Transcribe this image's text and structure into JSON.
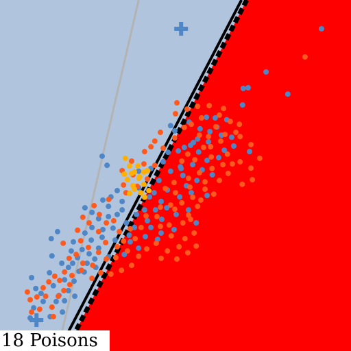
{
  "caption": "18 Poisons",
  "colors": {
    "region_left": "#b0c4de",
    "region_right": "#ff0000",
    "class_a": "#4f86c6",
    "class_b": "#ff5a1e",
    "poison": "#ffb000",
    "gray_boundary": "#b3b3b3",
    "boundary_solid": "#000000",
    "boundary_dashed": "#000000"
  },
  "chart_data": {
    "type": "scatter",
    "title": "",
    "xlabel": "",
    "ylabel": "",
    "grid": false,
    "legend": "none",
    "xlim": [
      0,
      1
    ],
    "ylim": [
      0,
      1
    ],
    "boundaries": [
      {
        "name": "",
        "style": "solid-gray",
        "x1": 0.395,
        "y1": 1.0,
        "x2": 0.164,
        "y2": 0.0
      },
      {
        "name": "",
        "style": "solid-black",
        "x1": 0.688,
        "y1": 1.0,
        "x2": 0.195,
        "y2": 0.055
      },
      {
        "name": "",
        "style": "dashed-black",
        "x1": 0.703,
        "y1": 1.0,
        "x2": 0.215,
        "y2": 0.055
      }
    ],
    "centers": [
      {
        "class": "a",
        "x": 0.516,
        "y": 0.918
      },
      {
        "class": "a",
        "x": 0.104,
        "y": 0.088
      }
    ],
    "series": [
      {
        "class": "a",
        "points": [
          [
            0.916,
            0.918
          ],
          [
            0.758,
            0.795
          ],
          [
            0.82,
            0.732
          ],
          [
            0.707,
            0.75
          ],
          [
            0.691,
            0.701
          ],
          [
            0.693,
            0.748
          ],
          [
            0.588,
            0.666
          ],
          [
            0.646,
            0.659
          ],
          [
            0.618,
            0.638
          ],
          [
            0.631,
            0.615
          ],
          [
            0.66,
            0.609
          ],
          [
            0.594,
            0.596
          ],
          [
            0.551,
            0.594
          ],
          [
            0.525,
            0.58
          ],
          [
            0.508,
            0.57
          ],
          [
            0.566,
            0.567
          ],
          [
            0.639,
            0.572
          ],
          [
            0.623,
            0.551
          ],
          [
            0.59,
            0.543
          ],
          [
            0.549,
            0.531
          ],
          [
            0.514,
            0.525
          ],
          [
            0.486,
            0.512
          ],
          [
            0.453,
            0.486
          ],
          [
            0.521,
            0.5
          ],
          [
            0.576,
            0.516
          ],
          [
            0.605,
            0.502
          ],
          [
            0.561,
            0.486
          ],
          [
            0.531,
            0.471
          ],
          [
            0.477,
            0.459
          ],
          [
            0.439,
            0.451
          ],
          [
            0.426,
            0.439
          ],
          [
            0.459,
            0.426
          ],
          [
            0.512,
            0.439
          ],
          [
            0.545,
            0.451
          ],
          [
            0.59,
            0.443
          ],
          [
            0.475,
            0.408
          ],
          [
            0.443,
            0.402
          ],
          [
            0.412,
            0.402
          ],
          [
            0.389,
            0.389
          ],
          [
            0.42,
            0.371
          ],
          [
            0.461,
            0.375
          ],
          [
            0.502,
            0.389
          ],
          [
            0.537,
            0.402
          ],
          [
            0.559,
            0.365
          ],
          [
            0.496,
            0.346
          ],
          [
            0.459,
            0.336
          ],
          [
            0.43,
            0.352
          ],
          [
            0.383,
            0.352
          ],
          [
            0.36,
            0.365
          ],
          [
            0.334,
            0.389
          ],
          [
            0.309,
            0.412
          ],
          [
            0.293,
            0.43
          ],
          [
            0.316,
            0.439
          ],
          [
            0.348,
            0.426
          ],
          [
            0.322,
            0.35
          ],
          [
            0.293,
            0.346
          ],
          [
            0.262,
            0.352
          ],
          [
            0.242,
            0.336
          ],
          [
            0.26,
            0.316
          ],
          [
            0.291,
            0.324
          ],
          [
            0.328,
            0.316
          ],
          [
            0.371,
            0.311
          ],
          [
            0.281,
            0.293
          ],
          [
            0.254,
            0.277
          ],
          [
            0.234,
            0.289
          ],
          [
            0.209,
            0.311
          ],
          [
            0.203,
            0.285
          ],
          [
            0.221,
            0.266
          ],
          [
            0.248,
            0.25
          ],
          [
            0.27,
            0.262
          ],
          [
            0.225,
            0.227
          ],
          [
            0.195,
            0.238
          ],
          [
            0.176,
            0.25
          ],
          [
            0.184,
            0.203
          ],
          [
            0.211,
            0.199
          ],
          [
            0.148,
            0.271
          ],
          [
            0.141,
            0.223
          ],
          [
            0.152,
            0.186
          ],
          [
            0.168,
            0.158
          ],
          [
            0.184,
            0.143
          ],
          [
            0.178,
            0.111
          ],
          [
            0.143,
            0.098
          ],
          [
            0.123,
            0.141
          ],
          [
            0.102,
            0.178
          ],
          [
            0.09,
            0.209
          ],
          [
            0.146,
            0.32
          ],
          [
            0.164,
            0.34
          ],
          [
            0.291,
            0.555
          ],
          [
            0.305,
            0.529
          ],
          [
            0.334,
            0.457
          ],
          [
            0.395,
            0.465
          ],
          [
            0.516,
            0.52
          ],
          [
            0.543,
            0.586
          ],
          [
            0.498,
            0.627
          ],
          [
            0.486,
            0.642
          ],
          [
            0.539,
            0.652
          ],
          [
            0.57,
            0.633
          ],
          [
            0.666,
            0.584
          ],
          [
            0.711,
            0.568
          ],
          [
            0.449,
            0.318
          ],
          [
            0.414,
            0.326
          ],
          [
            0.368,
            0.33
          ],
          [
            0.395,
            0.293
          ],
          [
            0.354,
            0.275
          ],
          [
            0.309,
            0.268
          ],
          [
            0.273,
            0.238
          ],
          [
            0.24,
            0.225
          ],
          [
            0.207,
            0.25
          ],
          [
            0.195,
            0.172
          ],
          [
            0.213,
            0.156
          ],
          [
            0.16,
            0.141
          ],
          [
            0.117,
            0.164
          ],
          [
            0.096,
            0.123
          ],
          [
            0.086,
            0.094
          ],
          [
            0.348,
            0.402
          ],
          [
            0.309,
            0.383
          ],
          [
            0.281,
            0.377
          ],
          [
            0.262,
            0.395
          ],
          [
            0.242,
            0.408
          ],
          [
            0.395,
            0.512
          ],
          [
            0.43,
            0.52
          ],
          [
            0.465,
            0.539
          ],
          [
            0.479,
            0.566
          ],
          [
            0.563,
            0.604
          ],
          [
            0.598,
            0.625
          ],
          [
            0.613,
            0.664
          ]
        ]
      },
      {
        "class": "b",
        "points": [
          [
            0.869,
            0.838
          ],
          [
            0.5,
            0.676
          ],
          [
            0.545,
            0.646
          ],
          [
            0.574,
            0.664
          ],
          [
            0.625,
            0.672
          ],
          [
            0.656,
            0.654
          ],
          [
            0.682,
            0.646
          ],
          [
            0.715,
            0.588
          ],
          [
            0.684,
            0.611
          ],
          [
            0.641,
            0.617
          ],
          [
            0.594,
            0.611
          ],
          [
            0.58,
            0.58
          ],
          [
            0.535,
            0.561
          ],
          [
            0.518,
            0.541
          ],
          [
            0.555,
            0.545
          ],
          [
            0.602,
            0.553
          ],
          [
            0.635,
            0.531
          ],
          [
            0.604,
            0.52
          ],
          [
            0.568,
            0.508
          ],
          [
            0.537,
            0.492
          ],
          [
            0.496,
            0.48
          ],
          [
            0.471,
            0.463
          ],
          [
            0.5,
            0.451
          ],
          [
            0.541,
            0.467
          ],
          [
            0.584,
            0.482
          ],
          [
            0.625,
            0.486
          ],
          [
            0.584,
            0.461
          ],
          [
            0.549,
            0.438
          ],
          [
            0.518,
            0.422
          ],
          [
            0.486,
            0.416
          ],
          [
            0.457,
            0.41
          ],
          [
            0.498,
            0.404
          ],
          [
            0.537,
            0.387
          ],
          [
            0.563,
            0.412
          ],
          [
            0.553,
            0.336
          ],
          [
            0.527,
            0.32
          ],
          [
            0.51,
            0.297
          ],
          [
            0.488,
            0.328
          ],
          [
            0.482,
            0.359
          ],
          [
            0.457,
            0.355
          ],
          [
            0.447,
            0.383
          ],
          [
            0.416,
            0.385
          ],
          [
            0.402,
            0.352
          ],
          [
            0.371,
            0.348
          ],
          [
            0.385,
            0.32
          ],
          [
            0.352,
            0.313
          ],
          [
            0.34,
            0.34
          ],
          [
            0.324,
            0.371
          ],
          [
            0.303,
            0.365
          ],
          [
            0.281,
            0.34
          ],
          [
            0.301,
            0.309
          ],
          [
            0.334,
            0.297
          ],
          [
            0.363,
            0.285
          ],
          [
            0.33,
            0.266
          ],
          [
            0.303,
            0.262
          ],
          [
            0.281,
            0.281
          ],
          [
            0.252,
            0.295
          ],
          [
            0.23,
            0.314
          ],
          [
            0.217,
            0.275
          ],
          [
            0.236,
            0.25
          ],
          [
            0.264,
            0.244
          ],
          [
            0.232,
            0.23
          ],
          [
            0.205,
            0.215
          ],
          [
            0.199,
            0.189
          ],
          [
            0.182,
            0.172
          ],
          [
            0.17,
            0.201
          ],
          [
            0.156,
            0.213
          ],
          [
            0.139,
            0.197
          ],
          [
            0.123,
            0.18
          ],
          [
            0.105,
            0.154
          ],
          [
            0.086,
            0.146
          ],
          [
            0.113,
            0.119
          ],
          [
            0.148,
            0.125
          ],
          [
            0.184,
            0.225
          ],
          [
            0.197,
            0.264
          ],
          [
            0.221,
            0.344
          ],
          [
            0.254,
            0.365
          ],
          [
            0.283,
            0.389
          ],
          [
            0.31,
            0.432
          ],
          [
            0.268,
            0.414
          ],
          [
            0.359,
            0.451
          ],
          [
            0.391,
            0.469
          ],
          [
            0.42,
            0.49
          ],
          [
            0.441,
            0.529
          ],
          [
            0.465,
            0.578
          ],
          [
            0.498,
            0.607
          ],
          [
            0.525,
            0.637
          ],
          [
            0.457,
            0.623
          ],
          [
            0.43,
            0.582
          ],
          [
            0.41,
            0.533
          ],
          [
            0.379,
            0.502
          ],
          [
            0.352,
            0.473
          ],
          [
            0.6,
            0.582
          ],
          [
            0.629,
            0.598
          ],
          [
            0.672,
            0.623
          ],
          [
            0.648,
            0.561
          ],
          [
            0.662,
            0.533
          ],
          [
            0.445,
            0.307
          ],
          [
            0.418,
            0.291
          ],
          [
            0.395,
            0.27
          ],
          [
            0.375,
            0.244
          ],
          [
            0.346,
            0.23
          ],
          [
            0.316,
            0.219
          ],
          [
            0.287,
            0.223
          ],
          [
            0.262,
            0.207
          ],
          [
            0.504,
            0.262
          ],
          [
            0.477,
            0.285
          ],
          [
            0.459,
            0.264
          ],
          [
            0.535,
            0.28
          ],
          [
            0.559,
            0.299
          ],
          [
            0.521,
            0.365
          ],
          [
            0.543,
            0.375
          ],
          [
            0.572,
            0.43
          ],
          [
            0.609,
            0.447
          ],
          [
            0.65,
            0.506
          ],
          [
            0.684,
            0.539
          ],
          [
            0.715,
            0.521
          ],
          [
            0.74,
            0.549
          ],
          [
            0.719,
            0.488
          ],
          [
            0.69,
            0.475
          ],
          [
            0.504,
            0.707
          ],
          [
            0.533,
            0.689
          ],
          [
            0.563,
            0.697
          ],
          [
            0.596,
            0.699
          ],
          [
            0.637,
            0.691
          ],
          [
            0.166,
            0.156
          ],
          [
            0.13,
            0.156
          ],
          [
            0.152,
            0.098
          ],
          [
            0.09,
            0.111
          ],
          [
            0.078,
            0.168
          ],
          [
            0.18,
            0.307
          ],
          [
            0.236,
            0.381
          ],
          [
            0.348,
            0.514
          ],
          [
            0.375,
            0.541
          ],
          [
            0.412,
            0.568
          ],
          [
            0.441,
            0.598
          ],
          [
            0.568,
            0.615
          ],
          [
            0.615,
            0.639
          ]
        ]
      },
      {
        "class": "poison",
        "points": [
          [
            0.357,
            0.549
          ],
          [
            0.369,
            0.527
          ],
          [
            0.383,
            0.51
          ],
          [
            0.396,
            0.492
          ],
          [
            0.41,
            0.475
          ],
          [
            0.424,
            0.457
          ],
          [
            0.401,
            0.451
          ],
          [
            0.379,
            0.471
          ],
          [
            0.363,
            0.488
          ],
          [
            0.393,
            0.527
          ],
          [
            0.41,
            0.51
          ],
          [
            0.383,
            0.461
          ],
          [
            0.369,
            0.449
          ],
          [
            0.412,
            0.438
          ],
          [
            0.354,
            0.504
          ],
          [
            0.375,
            0.506
          ],
          [
            0.398,
            0.496
          ],
          [
            0.42,
            0.514
          ]
        ]
      }
    ]
  }
}
